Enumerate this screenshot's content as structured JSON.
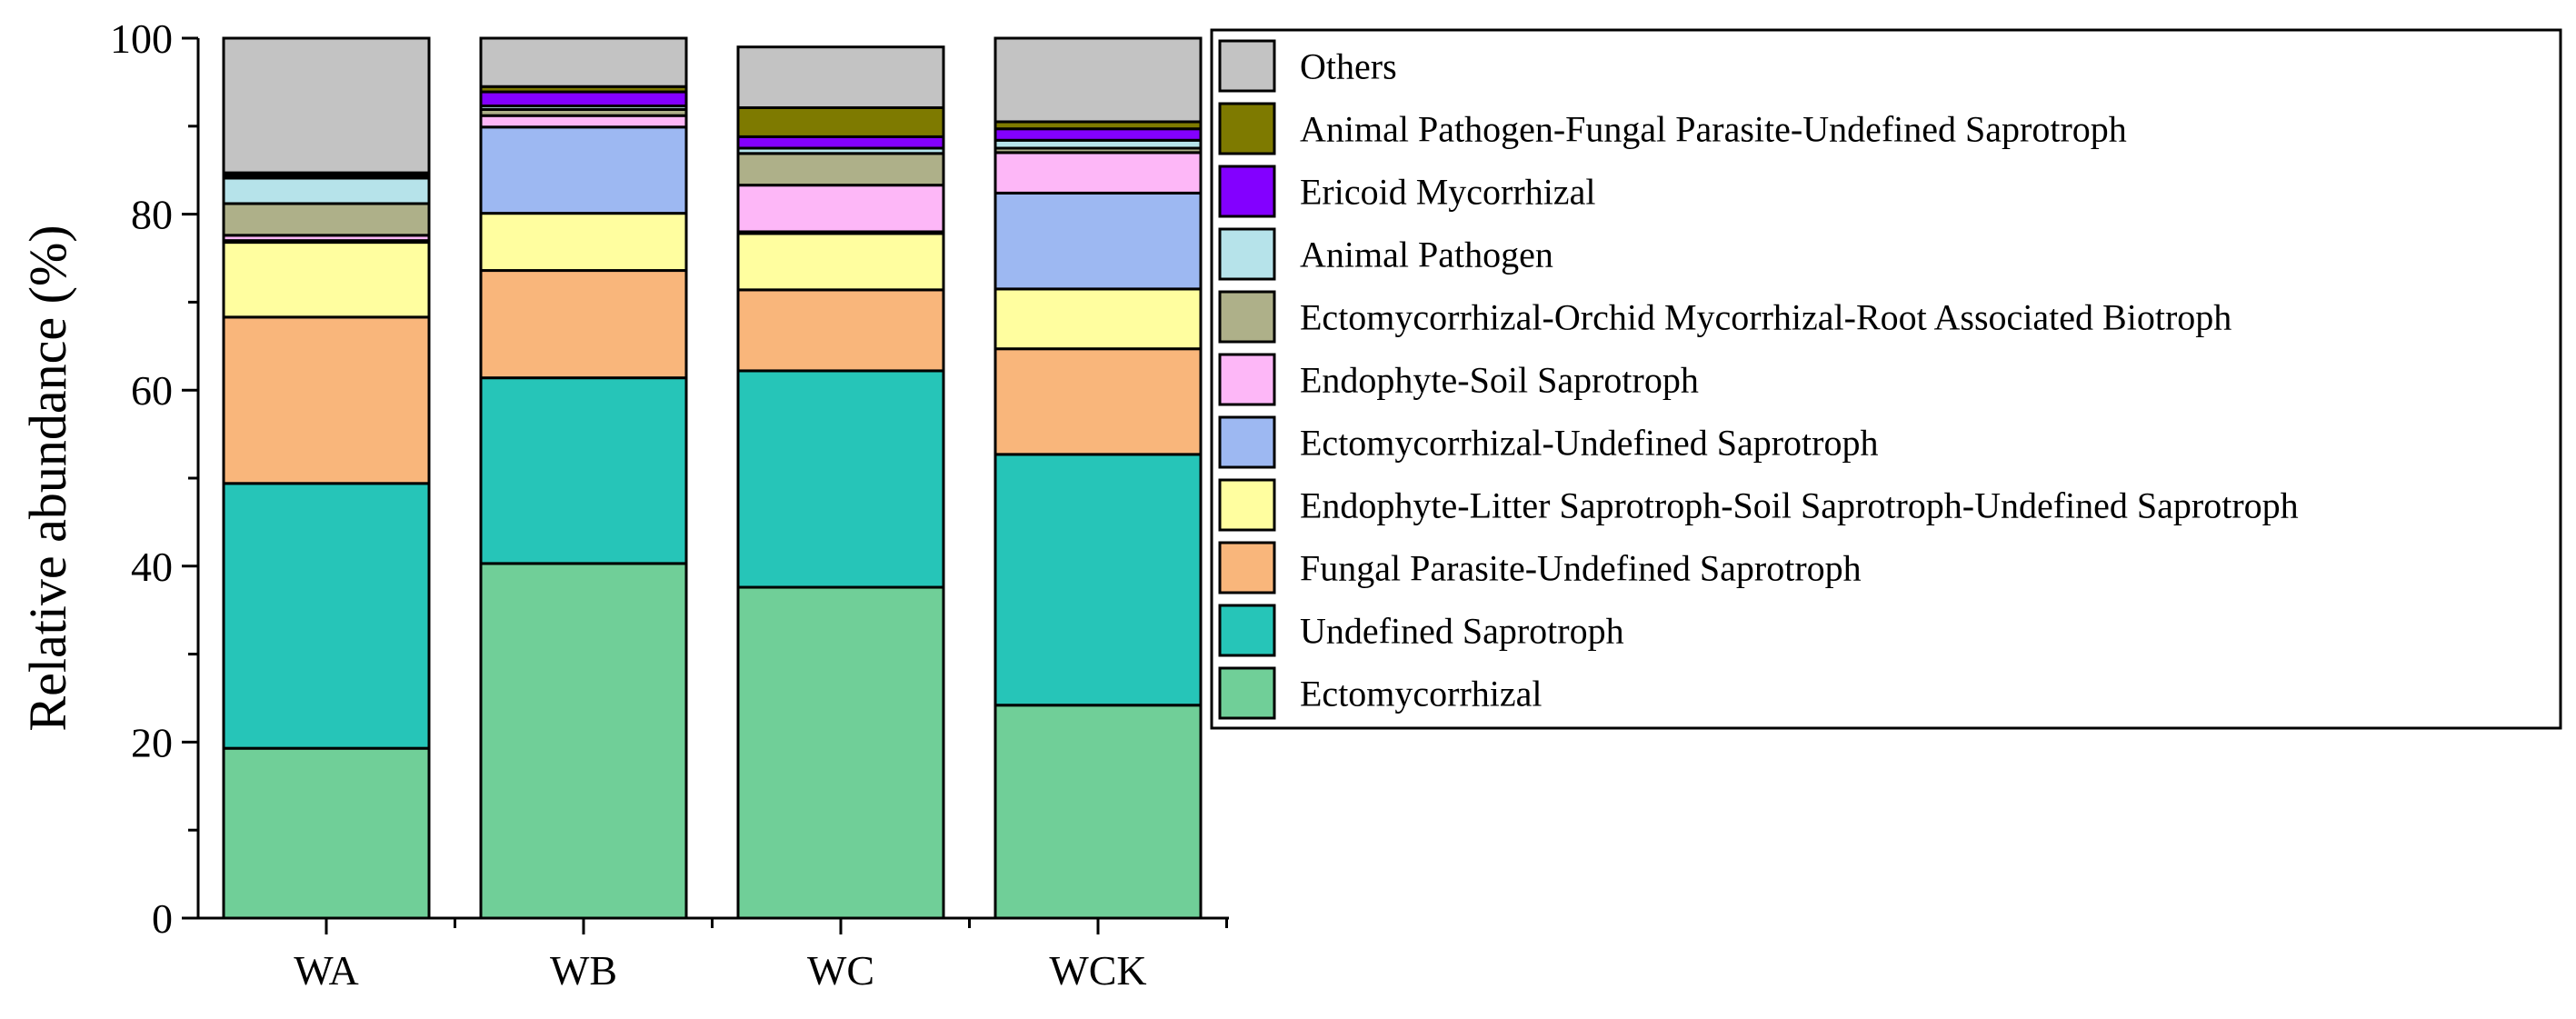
{
  "chart_data": {
    "type": "bar",
    "stacked": true,
    "title": "",
    "xlabel": "",
    "ylabel": "Relative abundance (%)",
    "ylim": [
      0,
      100
    ],
    "yticks": [
      "0",
      "20",
      "40",
      "60",
      "80",
      "100"
    ],
    "categories": [
      "WA",
      "WB",
      "WC",
      "WCK"
    ],
    "legend_position": "right",
    "series": [
      {
        "name": "Ectomycorrhizal",
        "color": "#70CF98",
        "values": [
          19.3,
          40.3,
          37.6,
          24.2
        ]
      },
      {
        "name": "Undefined Saprotroph",
        "color": "#26C5B8",
        "values": [
          30.1,
          21.1,
          24.6,
          28.5
        ]
      },
      {
        "name": "Fungal Parasite-Undefined Saprotroph",
        "color": "#F9B67B",
        "values": [
          18.9,
          12.2,
          9.2,
          12.0
        ]
      },
      {
        "name": "Endophyte-Litter Saprotroph-Soil Saprotroph-Undefined Saprotroph",
        "color": "#FFFE9F",
        "values": [
          8.5,
          6.5,
          6.4,
          6.8
        ]
      },
      {
        "name": "Ectomycorrhizal-Undefined Saprotroph",
        "color": "#9DB8F2",
        "values": [
          0.2,
          9.8,
          0.2,
          10.9
        ]
      },
      {
        "name": "Endophyte-Soil Saprotroph",
        "color": "#FDB7F7",
        "values": [
          0.6,
          1.3,
          5.3,
          4.6
        ]
      },
      {
        "name": "Ectomycorrhizal-Orchid Mycorrhizal-Root Associated Biotroph",
        "color": "#AEB089",
        "values": [
          3.6,
          0.7,
          3.6,
          0.5
        ]
      },
      {
        "name": "Animal Pathogen",
        "color": "#B6E3EA",
        "values": [
          2.9,
          0.4,
          0.6,
          0.9
        ]
      },
      {
        "name": "Ericoid Mycorrhizal",
        "color": "#8300FF",
        "values": [
          0.3,
          1.6,
          1.3,
          1.3
        ]
      },
      {
        "name": "Animal Pathogen-Fungal Parasite-Undefined Saprotroph",
        "color": "#7E7A00",
        "values": [
          0.3,
          0.6,
          3.3,
          0.8
        ]
      },
      {
        "name": "Others",
        "color": "#C3C3C3",
        "values": [
          15.3,
          5.5,
          6.9,
          9.5
        ]
      }
    ]
  }
}
